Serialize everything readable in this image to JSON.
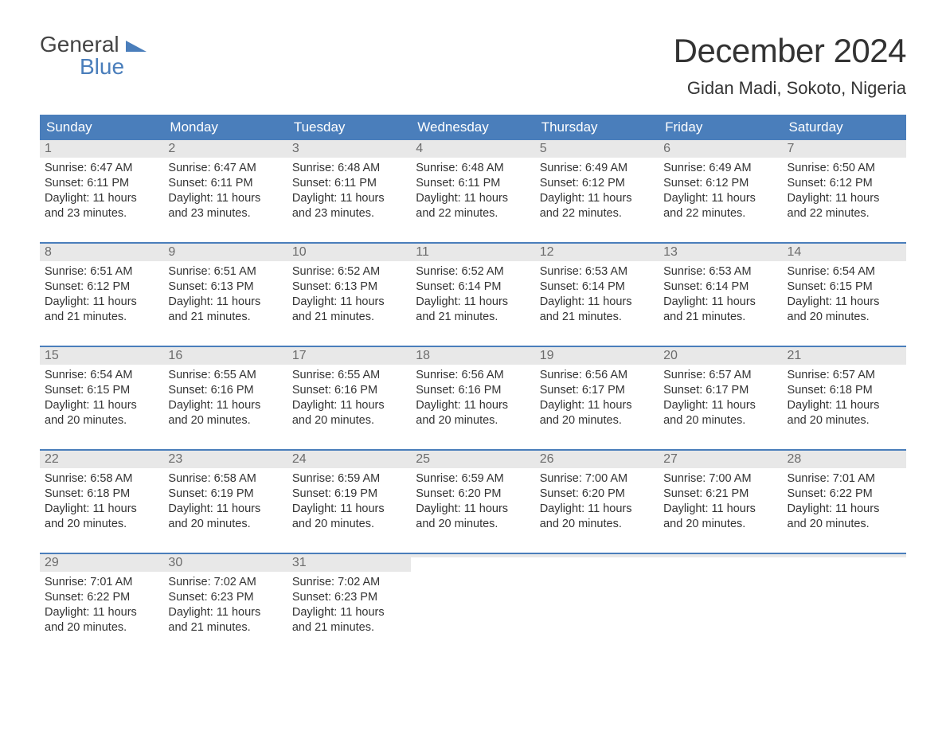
{
  "logo": {
    "text1": "General",
    "text2": "Blue",
    "color1": "#444444",
    "color2": "#4a7ebb"
  },
  "title": "December 2024",
  "location": "Gidan Madi, Sokoto, Nigeria",
  "colors": {
    "header_bg": "#4a7ebb",
    "header_text": "#ffffff",
    "daynum_bg": "#e8e8e8",
    "daynum_text": "#6c6c6c",
    "body_text": "#333333",
    "week_border": "#4a7ebb",
    "page_bg": "#ffffff"
  },
  "day_headers": [
    "Sunday",
    "Monday",
    "Tuesday",
    "Wednesday",
    "Thursday",
    "Friday",
    "Saturday"
  ],
  "weeks": [
    [
      {
        "n": "1",
        "sunrise": "Sunrise: 6:47 AM",
        "sunset": "Sunset: 6:11 PM",
        "d1": "Daylight: 11 hours",
        "d2": "and 23 minutes."
      },
      {
        "n": "2",
        "sunrise": "Sunrise: 6:47 AM",
        "sunset": "Sunset: 6:11 PM",
        "d1": "Daylight: 11 hours",
        "d2": "and 23 minutes."
      },
      {
        "n": "3",
        "sunrise": "Sunrise: 6:48 AM",
        "sunset": "Sunset: 6:11 PM",
        "d1": "Daylight: 11 hours",
        "d2": "and 23 minutes."
      },
      {
        "n": "4",
        "sunrise": "Sunrise: 6:48 AM",
        "sunset": "Sunset: 6:11 PM",
        "d1": "Daylight: 11 hours",
        "d2": "and 22 minutes."
      },
      {
        "n": "5",
        "sunrise": "Sunrise: 6:49 AM",
        "sunset": "Sunset: 6:12 PM",
        "d1": "Daylight: 11 hours",
        "d2": "and 22 minutes."
      },
      {
        "n": "6",
        "sunrise": "Sunrise: 6:49 AM",
        "sunset": "Sunset: 6:12 PM",
        "d1": "Daylight: 11 hours",
        "d2": "and 22 minutes."
      },
      {
        "n": "7",
        "sunrise": "Sunrise: 6:50 AM",
        "sunset": "Sunset: 6:12 PM",
        "d1": "Daylight: 11 hours",
        "d2": "and 22 minutes."
      }
    ],
    [
      {
        "n": "8",
        "sunrise": "Sunrise: 6:51 AM",
        "sunset": "Sunset: 6:12 PM",
        "d1": "Daylight: 11 hours",
        "d2": "and 21 minutes."
      },
      {
        "n": "9",
        "sunrise": "Sunrise: 6:51 AM",
        "sunset": "Sunset: 6:13 PM",
        "d1": "Daylight: 11 hours",
        "d2": "and 21 minutes."
      },
      {
        "n": "10",
        "sunrise": "Sunrise: 6:52 AM",
        "sunset": "Sunset: 6:13 PM",
        "d1": "Daylight: 11 hours",
        "d2": "and 21 minutes."
      },
      {
        "n": "11",
        "sunrise": "Sunrise: 6:52 AM",
        "sunset": "Sunset: 6:14 PM",
        "d1": "Daylight: 11 hours",
        "d2": "and 21 minutes."
      },
      {
        "n": "12",
        "sunrise": "Sunrise: 6:53 AM",
        "sunset": "Sunset: 6:14 PM",
        "d1": "Daylight: 11 hours",
        "d2": "and 21 minutes."
      },
      {
        "n": "13",
        "sunrise": "Sunrise: 6:53 AM",
        "sunset": "Sunset: 6:14 PM",
        "d1": "Daylight: 11 hours",
        "d2": "and 21 minutes."
      },
      {
        "n": "14",
        "sunrise": "Sunrise: 6:54 AM",
        "sunset": "Sunset: 6:15 PM",
        "d1": "Daylight: 11 hours",
        "d2": "and 20 minutes."
      }
    ],
    [
      {
        "n": "15",
        "sunrise": "Sunrise: 6:54 AM",
        "sunset": "Sunset: 6:15 PM",
        "d1": "Daylight: 11 hours",
        "d2": "and 20 minutes."
      },
      {
        "n": "16",
        "sunrise": "Sunrise: 6:55 AM",
        "sunset": "Sunset: 6:16 PM",
        "d1": "Daylight: 11 hours",
        "d2": "and 20 minutes."
      },
      {
        "n": "17",
        "sunrise": "Sunrise: 6:55 AM",
        "sunset": "Sunset: 6:16 PM",
        "d1": "Daylight: 11 hours",
        "d2": "and 20 minutes."
      },
      {
        "n": "18",
        "sunrise": "Sunrise: 6:56 AM",
        "sunset": "Sunset: 6:16 PM",
        "d1": "Daylight: 11 hours",
        "d2": "and 20 minutes."
      },
      {
        "n": "19",
        "sunrise": "Sunrise: 6:56 AM",
        "sunset": "Sunset: 6:17 PM",
        "d1": "Daylight: 11 hours",
        "d2": "and 20 minutes."
      },
      {
        "n": "20",
        "sunrise": "Sunrise: 6:57 AM",
        "sunset": "Sunset: 6:17 PM",
        "d1": "Daylight: 11 hours",
        "d2": "and 20 minutes."
      },
      {
        "n": "21",
        "sunrise": "Sunrise: 6:57 AM",
        "sunset": "Sunset: 6:18 PM",
        "d1": "Daylight: 11 hours",
        "d2": "and 20 minutes."
      }
    ],
    [
      {
        "n": "22",
        "sunrise": "Sunrise: 6:58 AM",
        "sunset": "Sunset: 6:18 PM",
        "d1": "Daylight: 11 hours",
        "d2": "and 20 minutes."
      },
      {
        "n": "23",
        "sunrise": "Sunrise: 6:58 AM",
        "sunset": "Sunset: 6:19 PM",
        "d1": "Daylight: 11 hours",
        "d2": "and 20 minutes."
      },
      {
        "n": "24",
        "sunrise": "Sunrise: 6:59 AM",
        "sunset": "Sunset: 6:19 PM",
        "d1": "Daylight: 11 hours",
        "d2": "and 20 minutes."
      },
      {
        "n": "25",
        "sunrise": "Sunrise: 6:59 AM",
        "sunset": "Sunset: 6:20 PM",
        "d1": "Daylight: 11 hours",
        "d2": "and 20 minutes."
      },
      {
        "n": "26",
        "sunrise": "Sunrise: 7:00 AM",
        "sunset": "Sunset: 6:20 PM",
        "d1": "Daylight: 11 hours",
        "d2": "and 20 minutes."
      },
      {
        "n": "27",
        "sunrise": "Sunrise: 7:00 AM",
        "sunset": "Sunset: 6:21 PM",
        "d1": "Daylight: 11 hours",
        "d2": "and 20 minutes."
      },
      {
        "n": "28",
        "sunrise": "Sunrise: 7:01 AM",
        "sunset": "Sunset: 6:22 PM",
        "d1": "Daylight: 11 hours",
        "d2": "and 20 minutes."
      }
    ],
    [
      {
        "n": "29",
        "sunrise": "Sunrise: 7:01 AM",
        "sunset": "Sunset: 6:22 PM",
        "d1": "Daylight: 11 hours",
        "d2": "and 20 minutes."
      },
      {
        "n": "30",
        "sunrise": "Sunrise: 7:02 AM",
        "sunset": "Sunset: 6:23 PM",
        "d1": "Daylight: 11 hours",
        "d2": "and 21 minutes."
      },
      {
        "n": "31",
        "sunrise": "Sunrise: 7:02 AM",
        "sunset": "Sunset: 6:23 PM",
        "d1": "Daylight: 11 hours",
        "d2": "and 21 minutes."
      },
      {
        "empty": true
      },
      {
        "empty": true
      },
      {
        "empty": true
      },
      {
        "empty": true
      }
    ]
  ]
}
